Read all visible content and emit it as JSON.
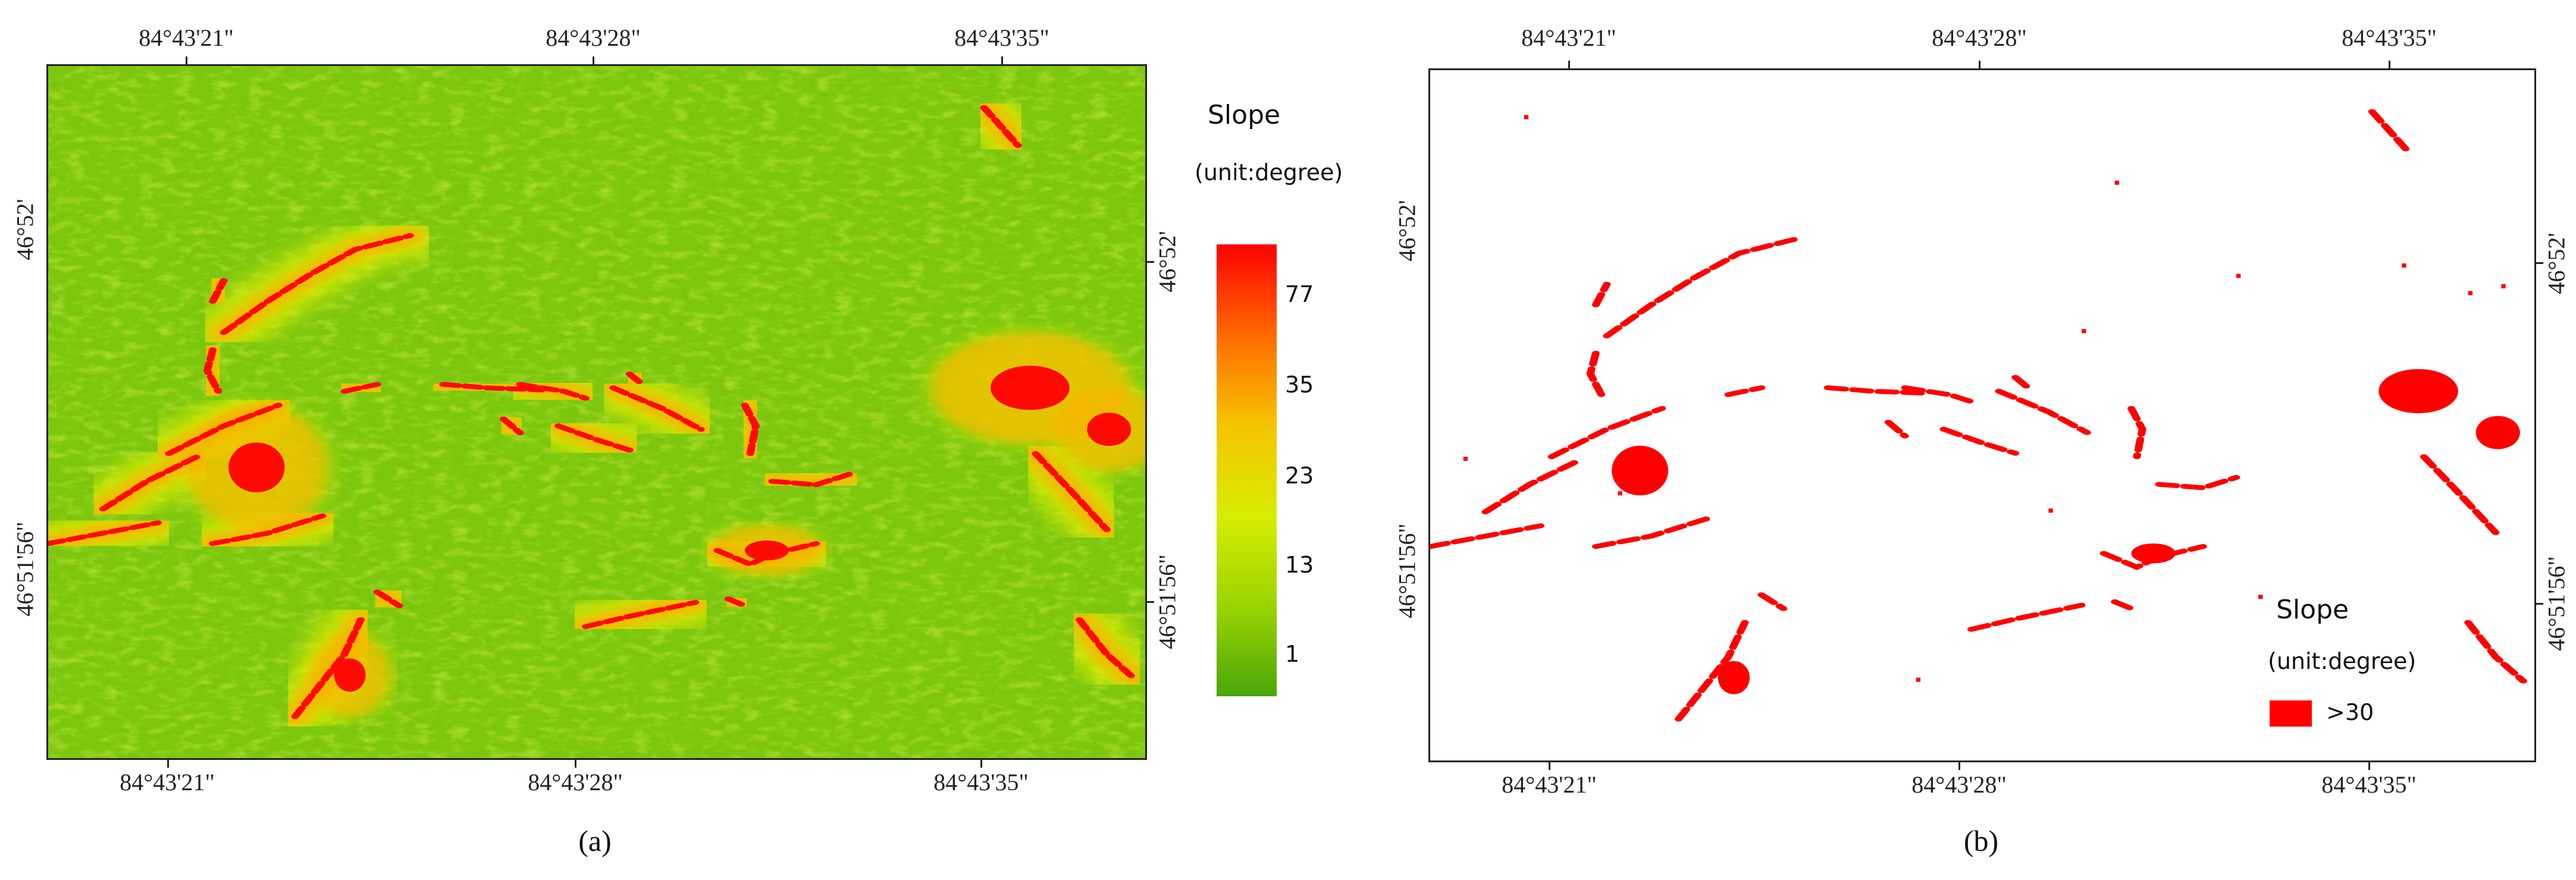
{
  "panels": [
    {
      "caption": "(a)",
      "top_lon_labels": [
        "84°43'21\"",
        "84°43'28\"",
        "84°43'35\""
      ],
      "bottom_lon_labels": [
        "84°43'21\"",
        "84°43'28\"",
        "84°43'35\""
      ],
      "left_lat_labels": [
        "46°52'",
        "46°51'56\""
      ],
      "right_lat_labels": [
        "46°52'",
        "46°51'56\""
      ],
      "legend": {
        "title": "Slope",
        "unit": "(unit:degree)",
        "colorbar_ticks": [
          "77",
          "35",
          "23",
          "13",
          "1"
        ],
        "colors": [
          "#ff0000",
          "#ff6a00",
          "#f5c400",
          "#d8ec00",
          "#9ad400",
          "#4aa60a"
        ]
      }
    },
    {
      "caption": "(b)",
      "top_lon_labels": [
        "84°43'21\"",
        "84°43'28\"",
        "84°43'35\""
      ],
      "bottom_lon_labels": [
        "84°43'21\"",
        "84°43'28\"",
        "84°43'35\""
      ],
      "left_lat_labels": [
        "46°52'",
        "46°51'56\""
      ],
      "right_lat_labels": [
        "46°52'",
        "46°51'56\""
      ],
      "legend": {
        "title": "Slope",
        "unit": "(unit:degree)",
        "class_label": ">30",
        "class_color": "#ff0000"
      }
    }
  ]
}
